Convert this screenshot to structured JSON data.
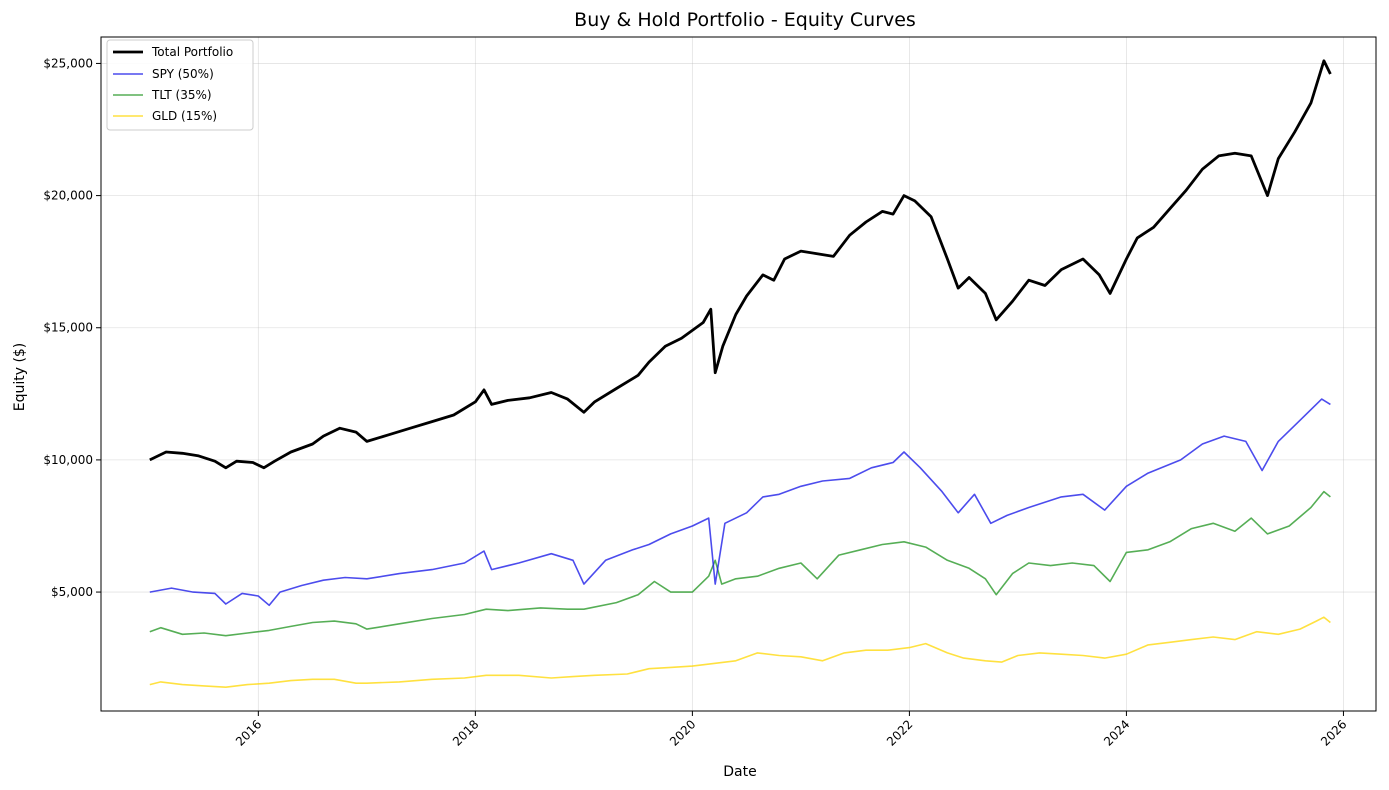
{
  "chart_data": {
    "type": "line",
    "title": "Buy & Hold Portfolio - Equity Curves",
    "xlabel": "Date",
    "ylabel": "Equity ($)",
    "x_unit": "year",
    "xlim": [
      2014.55,
      2026.3
    ],
    "ylim": [
      500,
      26000
    ],
    "grid": true,
    "legend_position": "top-left",
    "x_ticks": [
      {
        "value": 2016,
        "label": "2016"
      },
      {
        "value": 2018,
        "label": "2018"
      },
      {
        "value": 2020,
        "label": "2020"
      },
      {
        "value": 2022,
        "label": "2022"
      },
      {
        "value": 2024,
        "label": "2024"
      },
      {
        "value": 2026,
        "label": "2026"
      }
    ],
    "y_ticks": [
      {
        "value": 5000,
        "label": "$5,000"
      },
      {
        "value": 10000,
        "label": "$10,000"
      },
      {
        "value": 15000,
        "label": "$15,000"
      },
      {
        "value": 20000,
        "label": "$20,000"
      },
      {
        "value": 25000,
        "label": "$25,000"
      }
    ],
    "series": [
      {
        "name": "Total Portfolio",
        "color": "#000000",
        "points": [
          [
            2015.0,
            10000
          ],
          [
            2015.15,
            10300
          ],
          [
            2015.3,
            10250
          ],
          [
            2015.45,
            10150
          ],
          [
            2015.6,
            9950
          ],
          [
            2015.7,
            9700
          ],
          [
            2015.8,
            9950
          ],
          [
            2015.95,
            9900
          ],
          [
            2016.05,
            9700
          ],
          [
            2016.15,
            9950
          ],
          [
            2016.3,
            10300
          ],
          [
            2016.5,
            10600
          ],
          [
            2016.6,
            10900
          ],
          [
            2016.75,
            11200
          ],
          [
            2016.9,
            11050
          ],
          [
            2017.0,
            10700
          ],
          [
            2017.2,
            10950
          ],
          [
            2017.4,
            11200
          ],
          [
            2017.6,
            11450
          ],
          [
            2017.8,
            11700
          ],
          [
            2018.0,
            12200
          ],
          [
            2018.08,
            12650
          ],
          [
            2018.15,
            12100
          ],
          [
            2018.3,
            12250
          ],
          [
            2018.5,
            12350
          ],
          [
            2018.7,
            12550
          ],
          [
            2018.85,
            12300
          ],
          [
            2019.0,
            11800
          ],
          [
            2019.1,
            12200
          ],
          [
            2019.3,
            12700
          ],
          [
            2019.5,
            13200
          ],
          [
            2019.6,
            13700
          ],
          [
            2019.75,
            14300
          ],
          [
            2019.9,
            14600
          ],
          [
            2020.1,
            15200
          ],
          [
            2020.17,
            15700
          ],
          [
            2020.21,
            13300
          ],
          [
            2020.28,
            14300
          ],
          [
            2020.4,
            15500
          ],
          [
            2020.5,
            16200
          ],
          [
            2020.65,
            17000
          ],
          [
            2020.75,
            16800
          ],
          [
            2020.85,
            17600
          ],
          [
            2021.0,
            17900
          ],
          [
            2021.15,
            17800
          ],
          [
            2021.3,
            17700
          ],
          [
            2021.45,
            18500
          ],
          [
            2021.6,
            19000
          ],
          [
            2021.75,
            19400
          ],
          [
            2021.85,
            19300
          ],
          [
            2021.95,
            20000
          ],
          [
            2022.05,
            19800
          ],
          [
            2022.2,
            19200
          ],
          [
            2022.35,
            17600
          ],
          [
            2022.45,
            16500
          ],
          [
            2022.55,
            16900
          ],
          [
            2022.7,
            16300
          ],
          [
            2022.8,
            15300
          ],
          [
            2022.95,
            16000
          ],
          [
            2023.1,
            16800
          ],
          [
            2023.25,
            16600
          ],
          [
            2023.4,
            17200
          ],
          [
            2023.6,
            17600
          ],
          [
            2023.75,
            17000
          ],
          [
            2023.85,
            16300
          ],
          [
            2024.0,
            17600
          ],
          [
            2024.1,
            18400
          ],
          [
            2024.25,
            18800
          ],
          [
            2024.4,
            19500
          ],
          [
            2024.55,
            20200
          ],
          [
            2024.7,
            21000
          ],
          [
            2024.85,
            21500
          ],
          [
            2025.0,
            21600
          ],
          [
            2025.15,
            21500
          ],
          [
            2025.3,
            20000
          ],
          [
            2025.4,
            21400
          ],
          [
            2025.55,
            22400
          ],
          [
            2025.7,
            23500
          ],
          [
            2025.82,
            25100
          ],
          [
            2025.88,
            24600
          ]
        ]
      },
      {
        "name": "SPY (50%)",
        "color": "#1f1fe8",
        "points": [
          [
            2015.0,
            5000
          ],
          [
            2015.2,
            5150
          ],
          [
            2015.4,
            5000
          ],
          [
            2015.6,
            4950
          ],
          [
            2015.7,
            4550
          ],
          [
            2015.85,
            4950
          ],
          [
            2016.0,
            4850
          ],
          [
            2016.1,
            4500
          ],
          [
            2016.2,
            5000
          ],
          [
            2016.4,
            5250
          ],
          [
            2016.6,
            5450
          ],
          [
            2016.8,
            5550
          ],
          [
            2017.0,
            5500
          ],
          [
            2017.3,
            5700
          ],
          [
            2017.6,
            5850
          ],
          [
            2017.9,
            6100
          ],
          [
            2018.08,
            6550
          ],
          [
            2018.15,
            5850
          ],
          [
            2018.4,
            6100
          ],
          [
            2018.7,
            6450
          ],
          [
            2018.9,
            6200
          ],
          [
            2019.0,
            5300
          ],
          [
            2019.2,
            6200
          ],
          [
            2019.45,
            6600
          ],
          [
            2019.6,
            6800
          ],
          [
            2019.8,
            7200
          ],
          [
            2020.0,
            7500
          ],
          [
            2020.15,
            7800
          ],
          [
            2020.21,
            5300
          ],
          [
            2020.3,
            7600
          ],
          [
            2020.5,
            8000
          ],
          [
            2020.65,
            8600
          ],
          [
            2020.8,
            8700
          ],
          [
            2021.0,
            9000
          ],
          [
            2021.2,
            9200
          ],
          [
            2021.45,
            9300
          ],
          [
            2021.65,
            9700
          ],
          [
            2021.85,
            9900
          ],
          [
            2021.95,
            10300
          ],
          [
            2022.1,
            9700
          ],
          [
            2022.3,
            8800
          ],
          [
            2022.45,
            8000
          ],
          [
            2022.6,
            8700
          ],
          [
            2022.75,
            7600
          ],
          [
            2022.9,
            7900
          ],
          [
            2023.1,
            8200
          ],
          [
            2023.4,
            8600
          ],
          [
            2023.6,
            8700
          ],
          [
            2023.8,
            8100
          ],
          [
            2024.0,
            9000
          ],
          [
            2024.2,
            9500
          ],
          [
            2024.5,
            10000
          ],
          [
            2024.7,
            10600
          ],
          [
            2024.9,
            10900
          ],
          [
            2025.1,
            10700
          ],
          [
            2025.25,
            9600
          ],
          [
            2025.4,
            10700
          ],
          [
            2025.6,
            11500
          ],
          [
            2025.8,
            12300
          ],
          [
            2025.88,
            12100
          ]
        ]
      },
      {
        "name": "TLT (35%)",
        "color": "#2c9a2c",
        "points": [
          [
            2015.0,
            3500
          ],
          [
            2015.1,
            3650
          ],
          [
            2015.3,
            3400
          ],
          [
            2015.5,
            3450
          ],
          [
            2015.7,
            3350
          ],
          [
            2015.9,
            3450
          ],
          [
            2016.1,
            3550
          ],
          [
            2016.3,
            3700
          ],
          [
            2016.5,
            3850
          ],
          [
            2016.7,
            3900
          ],
          [
            2016.9,
            3800
          ],
          [
            2017.0,
            3600
          ],
          [
            2017.3,
            3800
          ],
          [
            2017.6,
            4000
          ],
          [
            2017.9,
            4150
          ],
          [
            2018.1,
            4350
          ],
          [
            2018.3,
            4300
          ],
          [
            2018.6,
            4400
          ],
          [
            2018.85,
            4350
          ],
          [
            2019.0,
            4350
          ],
          [
            2019.3,
            4600
          ],
          [
            2019.5,
            4900
          ],
          [
            2019.65,
            5400
          ],
          [
            2019.8,
            5000
          ],
          [
            2020.0,
            5000
          ],
          [
            2020.15,
            5600
          ],
          [
            2020.21,
            6200
          ],
          [
            2020.27,
            5300
          ],
          [
            2020.4,
            5500
          ],
          [
            2020.6,
            5600
          ],
          [
            2020.8,
            5900
          ],
          [
            2021.0,
            6100
          ],
          [
            2021.15,
            5500
          ],
          [
            2021.35,
            6400
          ],
          [
            2021.55,
            6600
          ],
          [
            2021.75,
            6800
          ],
          [
            2021.95,
            6900
          ],
          [
            2022.15,
            6700
          ],
          [
            2022.35,
            6200
          ],
          [
            2022.55,
            5900
          ],
          [
            2022.7,
            5500
          ],
          [
            2022.8,
            4900
          ],
          [
            2022.95,
            5700
          ],
          [
            2023.1,
            6100
          ],
          [
            2023.3,
            6000
          ],
          [
            2023.5,
            6100
          ],
          [
            2023.7,
            6000
          ],
          [
            2023.85,
            5400
          ],
          [
            2024.0,
            6500
          ],
          [
            2024.2,
            6600
          ],
          [
            2024.4,
            6900
          ],
          [
            2024.6,
            7400
          ],
          [
            2024.8,
            7600
          ],
          [
            2025.0,
            7300
          ],
          [
            2025.15,
            7800
          ],
          [
            2025.3,
            7200
          ],
          [
            2025.5,
            7500
          ],
          [
            2025.7,
            8200
          ],
          [
            2025.82,
            8800
          ],
          [
            2025.88,
            8600
          ]
        ]
      },
      {
        "name": "GLD (15%)",
        "color": "#ffd700",
        "points": [
          [
            2015.0,
            1500
          ],
          [
            2015.1,
            1600
          ],
          [
            2015.3,
            1500
          ],
          [
            2015.5,
            1450
          ],
          [
            2015.7,
            1400
          ],
          [
            2015.9,
            1500
          ],
          [
            2016.1,
            1550
          ],
          [
            2016.3,
            1650
          ],
          [
            2016.5,
            1700
          ],
          [
            2016.7,
            1700
          ],
          [
            2016.9,
            1550
          ],
          [
            2017.0,
            1550
          ],
          [
            2017.3,
            1600
          ],
          [
            2017.6,
            1700
          ],
          [
            2017.9,
            1750
          ],
          [
            2018.1,
            1850
          ],
          [
            2018.4,
            1850
          ],
          [
            2018.7,
            1750
          ],
          [
            2018.9,
            1800
          ],
          [
            2019.1,
            1850
          ],
          [
            2019.4,
            1900
          ],
          [
            2019.6,
            2100
          ],
          [
            2019.8,
            2150
          ],
          [
            2020.0,
            2200
          ],
          [
            2020.2,
            2300
          ],
          [
            2020.4,
            2400
          ],
          [
            2020.6,
            2700
          ],
          [
            2020.8,
            2600
          ],
          [
            2021.0,
            2550
          ],
          [
            2021.2,
            2400
          ],
          [
            2021.4,
            2700
          ],
          [
            2021.6,
            2800
          ],
          [
            2021.8,
            2800
          ],
          [
            2022.0,
            2900
          ],
          [
            2022.15,
            3050
          ],
          [
            2022.35,
            2700
          ],
          [
            2022.5,
            2500
          ],
          [
            2022.7,
            2400
          ],
          [
            2022.85,
            2350
          ],
          [
            2023.0,
            2600
          ],
          [
            2023.2,
            2700
          ],
          [
            2023.4,
            2650
          ],
          [
            2023.6,
            2600
          ],
          [
            2023.8,
            2500
          ],
          [
            2024.0,
            2650
          ],
          [
            2024.2,
            3000
          ],
          [
            2024.4,
            3100
          ],
          [
            2024.6,
            3200
          ],
          [
            2024.8,
            3300
          ],
          [
            2025.0,
            3200
          ],
          [
            2025.2,
            3500
          ],
          [
            2025.4,
            3400
          ],
          [
            2025.6,
            3600
          ],
          [
            2025.75,
            3900
          ],
          [
            2025.82,
            4050
          ],
          [
            2025.88,
            3850
          ]
        ]
      }
    ]
  }
}
